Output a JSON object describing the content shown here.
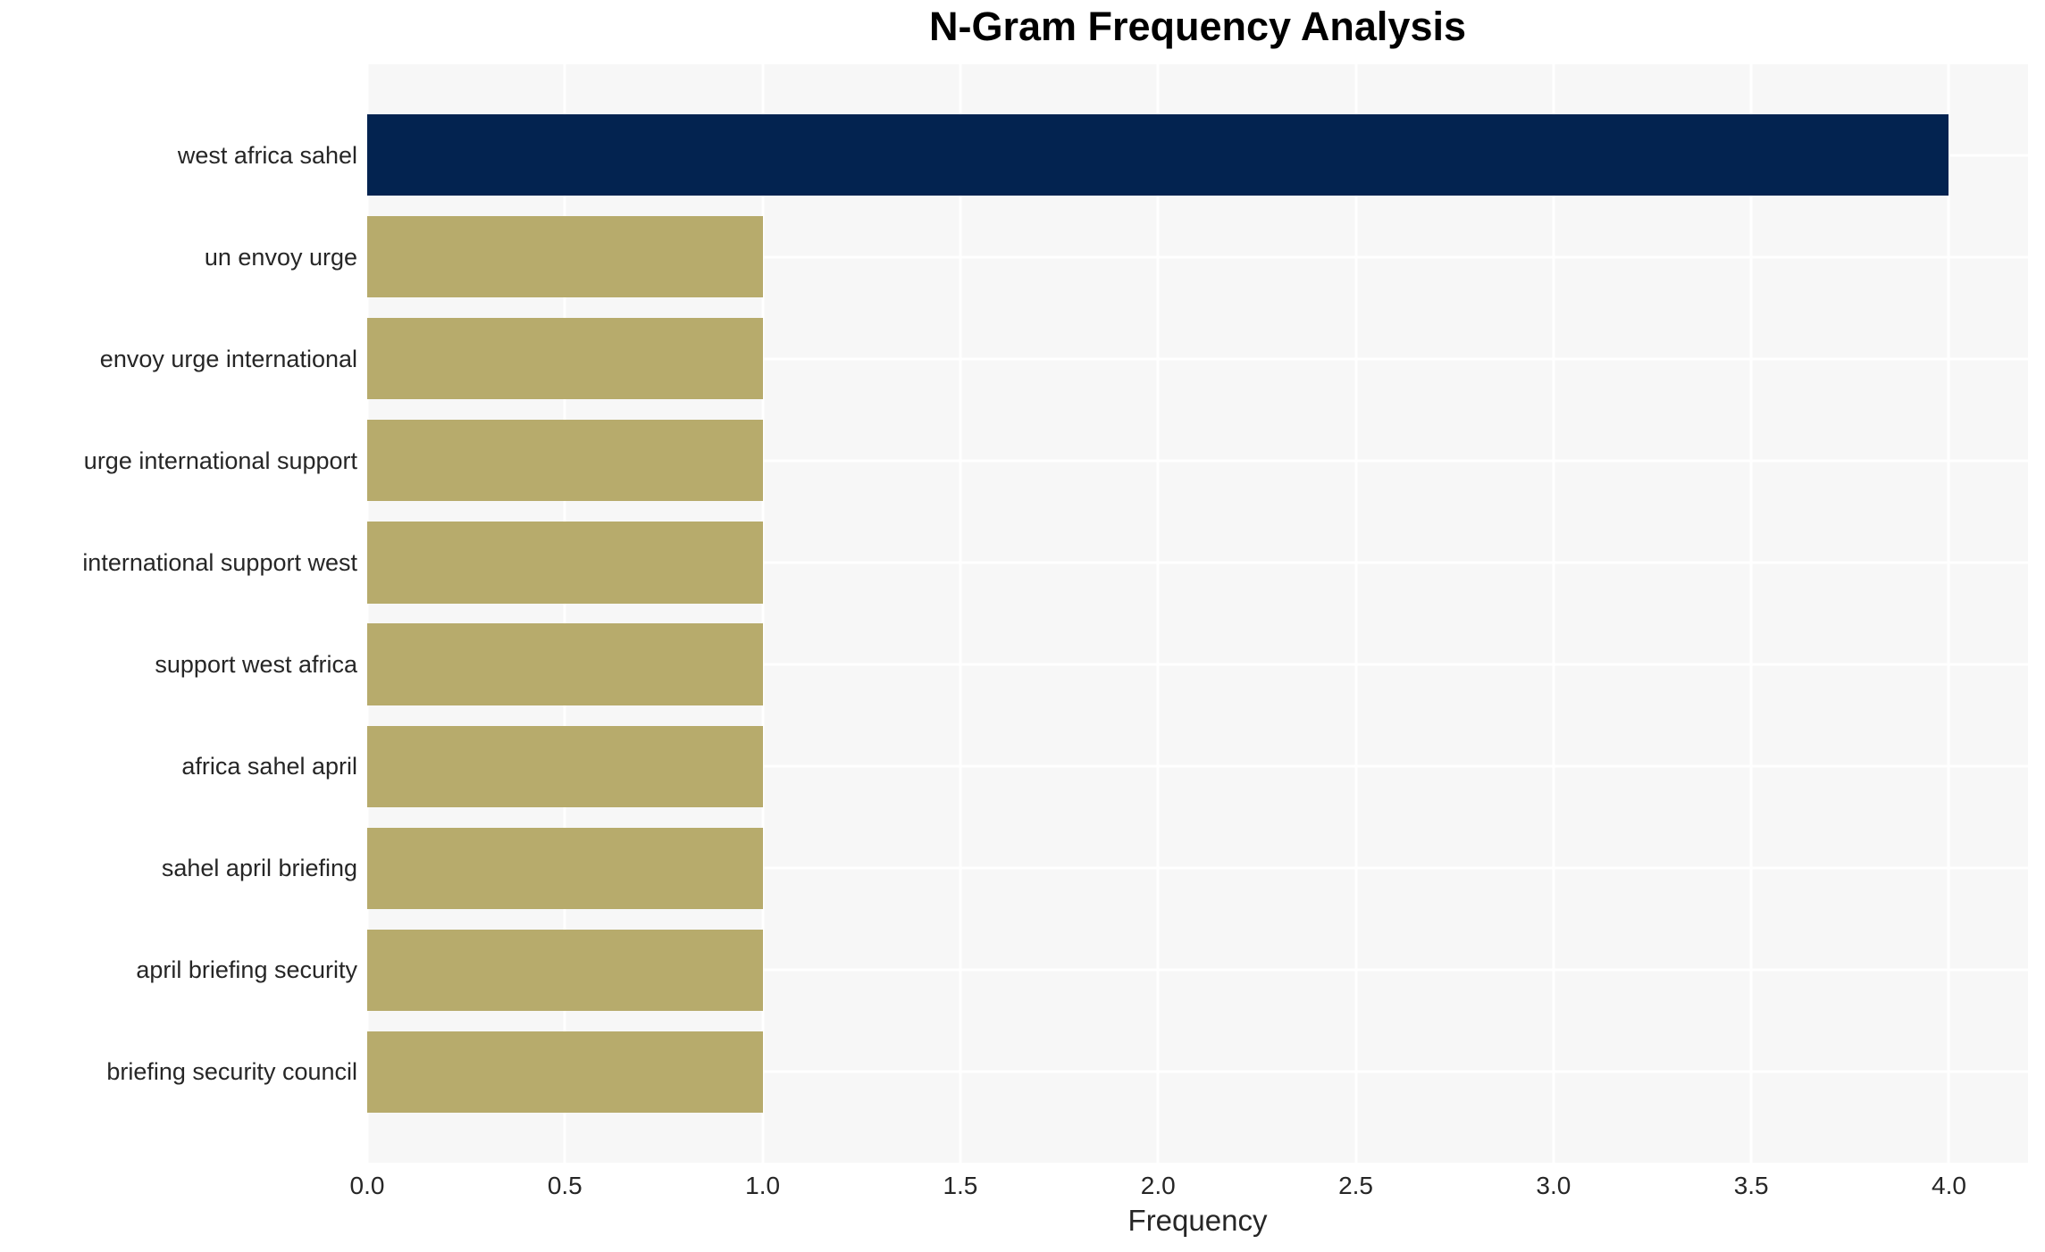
{
  "chart_data": {
    "type": "bar",
    "orientation": "horizontal",
    "title": "N-Gram Frequency Analysis",
    "xlabel": "Frequency",
    "ylabel": "",
    "categories": [
      "west africa sahel",
      "un envoy urge",
      "envoy urge international",
      "urge international support",
      "international support west",
      "support west africa",
      "africa sahel april",
      "sahel april briefing",
      "april briefing security",
      "briefing security council"
    ],
    "values": [
      4,
      1,
      1,
      1,
      1,
      1,
      1,
      1,
      1,
      1
    ],
    "bar_colors": [
      "#032350",
      "#b7ab6c",
      "#b7ab6c",
      "#b7ab6c",
      "#b7ab6c",
      "#b7ab6c",
      "#b7ab6c",
      "#b7ab6c",
      "#b7ab6c",
      "#b7ab6c"
    ],
    "xlim": [
      0,
      4.2
    ],
    "xticks": [
      0,
      0.5,
      1,
      1.5,
      2,
      2.5,
      3,
      3.5,
      4
    ],
    "xtick_labels": [
      "0.0",
      "0.5",
      "1.0",
      "1.5",
      "2.0",
      "2.5",
      "3.0",
      "3.5",
      "4.0"
    ],
    "grid": true,
    "legend_position": "none",
    "colors": {
      "plot_background": "#f7f7f7",
      "figure_background": "#ffffff",
      "gridline": "#ffffff",
      "tick_text": "#262626",
      "title_text": "#000000",
      "bar_highlight": "#032350",
      "bar_default": "#b7ab6c"
    }
  }
}
